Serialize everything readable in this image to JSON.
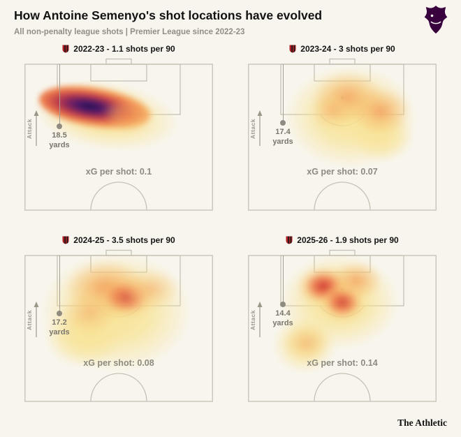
{
  "header": {
    "title": "How Antoine Semenyo's shot locations have evolved",
    "subtitle": "All non-penalty league shots | Premier League since 2022-23"
  },
  "branding": {
    "footer": "The Athletic",
    "league_logo": "premier-league-crest",
    "club_crest": "afc-bournemouth-crest"
  },
  "labels": {
    "attack": "Attack",
    "yards": "yards"
  },
  "palette": {
    "background": "#f7f5ee",
    "pitch_line": "#c5c1b4",
    "heat_low": "#f8e28e",
    "heat_mid": "#f3944f",
    "heat_high": "#cd2a26",
    "heat_peak": "#1c0a47",
    "text_dark": "#121212",
    "text_muted": "#8d8a7f",
    "pl_purple": "#38003c",
    "club_red": "#b01e23"
  },
  "chart_data": {
    "type": "heatmap",
    "title": "How Antoine Semenyo's shot locations have evolved",
    "subtitle": "All non-penalty league shots | Premier League since 2022-23",
    "layout": "2x2 grid of attacking-half pitch maps, goal at top, attack direction towards top",
    "panels": [
      {
        "season": "2022-23",
        "shots_per_90": 1.1,
        "label": "2022-23 - 1.1 shots per 90",
        "avg_shot_distance_yards": 18.5,
        "distance_value": "18.5",
        "xg_per_shot": 0.1,
        "xg_label": "xG per shot: 0.1",
        "hotspot_description": "single dense narrow diagonal band around the penalty-area edge, centre-left, with a very high intensity (dark purple) core"
      },
      {
        "season": "2023-24",
        "shots_per_90": 3,
        "label": "2023-24 - 3 shots per 90",
        "avg_shot_distance_yards": 17.4,
        "distance_value": "17.4",
        "xg_per_shot": 0.07,
        "xg_label": "xG per shot: 0.07",
        "hotspot_description": "diffuse moderate heat spread over and around the penalty area, warmest centre and centre-right"
      },
      {
        "season": "2024-25",
        "shots_per_90": 3.5,
        "label": "2024-25 - 3.5 shots per 90",
        "avg_shot_distance_yards": 17.2,
        "distance_value": "17.2",
        "xg_per_shot": 0.08,
        "xg_label": "xG per shot: 0.08",
        "hotspot_description": "broad spread covering the box and its edge, warmest orange-red zone in the middle of the penalty area"
      },
      {
        "season": "2025-26",
        "shots_per_90": 1.9,
        "label": "2025-26 - 1.9 shots per 90",
        "avg_shot_distance_yards": 14.4,
        "distance_value": "14.4",
        "xg_per_shot": 0.14,
        "xg_label": "xG per shot: 0.14",
        "hotspot_description": "hot red zones close to the six-yard box centre-left, plus a secondary lighter patch outside the box on the left"
      }
    ]
  }
}
